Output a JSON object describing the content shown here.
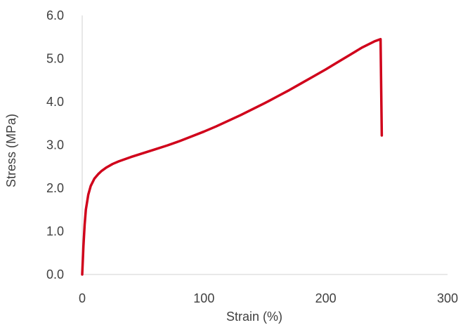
{
  "chart_data": {
    "type": "line",
    "title": "",
    "xlabel": "Strain (%)",
    "ylabel": "Stress (MPa)",
    "xlim": [
      0,
      300
    ],
    "ylim": [
      0,
      6
    ],
    "x_ticks": [
      0,
      100,
      200,
      300
    ],
    "y_ticks": [
      "0.0",
      "1.0",
      "2.0",
      "3.0",
      "4.0",
      "5.0",
      "6.0"
    ],
    "grid": false,
    "legend": "none",
    "series": [
      {
        "color": "#d0021b",
        "x": [
          0,
          1,
          2,
          3,
          5,
          7,
          10,
          13,
          16,
          20,
          25,
          30,
          40,
          50,
          60,
          70,
          80,
          90,
          100,
          110,
          120,
          130,
          140,
          150,
          160,
          170,
          180,
          190,
          200,
          210,
          220,
          230,
          240,
          245,
          246
        ],
        "y": [
          0.0,
          0.65,
          1.15,
          1.5,
          1.85,
          2.05,
          2.22,
          2.32,
          2.4,
          2.48,
          2.56,
          2.62,
          2.72,
          2.81,
          2.9,
          2.99,
          3.09,
          3.2,
          3.31,
          3.43,
          3.56,
          3.69,
          3.83,
          3.97,
          4.12,
          4.27,
          4.43,
          4.59,
          4.75,
          4.92,
          5.09,
          5.26,
          5.4,
          5.45,
          3.22
        ]
      }
    ]
  }
}
